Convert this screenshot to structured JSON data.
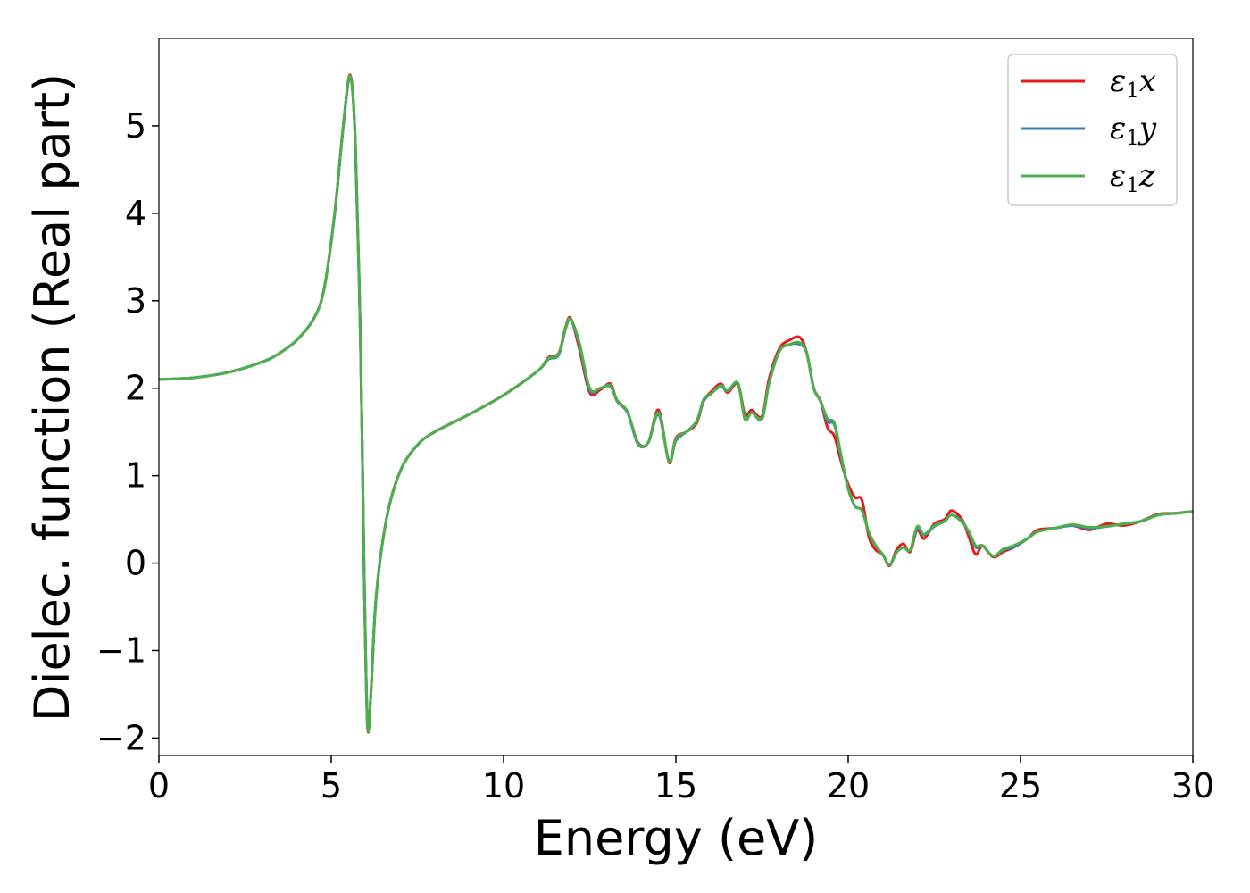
{
  "chart_data": {
    "type": "line",
    "title": "",
    "xlabel": "Energy (eV)",
    "ylabel": "Dielec. function (Real part)",
    "xlim": [
      0,
      30
    ],
    "ylim": [
      -2.2,
      6.0
    ],
    "xticks": [
      0,
      5,
      10,
      15,
      20,
      25,
      30
    ],
    "xtick_labels": [
      "0",
      "5",
      "10",
      "15",
      "20",
      "25",
      "30"
    ],
    "yticks": [
      -2,
      -1,
      0,
      1,
      2,
      3,
      4,
      5
    ],
    "ytick_labels": [
      "−2",
      "−1",
      "0",
      "1",
      "2",
      "3",
      "4",
      "5"
    ],
    "grid": false,
    "legend_position": "top-right",
    "series": [
      {
        "name": "ε₁x",
        "sym": "ε",
        "sub": "1",
        "comp": "x",
        "color": "#e41a1c",
        "points": [
          [
            0,
            2.1
          ],
          [
            1,
            2.12
          ],
          [
            2,
            2.18
          ],
          [
            3,
            2.3
          ],
          [
            3.5,
            2.4
          ],
          [
            4,
            2.55
          ],
          [
            4.5,
            2.8
          ],
          [
            4.8,
            3.15
          ],
          [
            5.1,
            4.0
          ],
          [
            5.35,
            5.0
          ],
          [
            5.55,
            5.58
          ],
          [
            5.7,
            4.8
          ],
          [
            5.85,
            2.5
          ],
          [
            5.95,
            0.0
          ],
          [
            6.05,
            -1.85
          ],
          [
            6.15,
            -1.5
          ],
          [
            6.3,
            -0.4
          ],
          [
            6.6,
            0.5
          ],
          [
            7,
            1.05
          ],
          [
            7.5,
            1.35
          ],
          [
            8,
            1.5
          ],
          [
            9,
            1.7
          ],
          [
            10,
            1.92
          ],
          [
            11,
            2.2
          ],
          [
            11.3,
            2.35
          ],
          [
            11.6,
            2.4
          ],
          [
            11.8,
            2.7
          ],
          [
            11.95,
            2.8
          ],
          [
            12.2,
            2.45
          ],
          [
            12.5,
            1.95
          ],
          [
            12.8,
            1.98
          ],
          [
            13.1,
            2.05
          ],
          [
            13.3,
            1.85
          ],
          [
            13.6,
            1.72
          ],
          [
            13.9,
            1.38
          ],
          [
            14.2,
            1.38
          ],
          [
            14.5,
            1.75
          ],
          [
            14.8,
            1.15
          ],
          [
            15,
            1.43
          ],
          [
            15.3,
            1.5
          ],
          [
            15.6,
            1.6
          ],
          [
            15.8,
            1.85
          ],
          [
            16,
            1.95
          ],
          [
            16.3,
            2.05
          ],
          [
            16.5,
            1.95
          ],
          [
            16.8,
            2.05
          ],
          [
            17,
            1.7
          ],
          [
            17.2,
            1.75
          ],
          [
            17.5,
            1.68
          ],
          [
            17.7,
            2.1
          ],
          [
            18,
            2.45
          ],
          [
            18.3,
            2.55
          ],
          [
            18.6,
            2.58
          ],
          [
            18.8,
            2.4
          ],
          [
            19,
            2.0
          ],
          [
            19.2,
            1.85
          ],
          [
            19.4,
            1.55
          ],
          [
            19.6,
            1.45
          ],
          [
            19.8,
            1.15
          ],
          [
            20,
            0.9
          ],
          [
            20.2,
            0.75
          ],
          [
            20.4,
            0.72
          ],
          [
            20.6,
            0.3
          ],
          [
            20.8,
            0.15
          ],
          [
            21.0,
            0.1
          ],
          [
            21.2,
            -0.03
          ],
          [
            21.4,
            0.15
          ],
          [
            21.6,
            0.22
          ],
          [
            21.8,
            0.13
          ],
          [
            22.0,
            0.38
          ],
          [
            22.2,
            0.28
          ],
          [
            22.5,
            0.45
          ],
          [
            22.8,
            0.5
          ],
          [
            23.0,
            0.6
          ],
          [
            23.3,
            0.5
          ],
          [
            23.5,
            0.3
          ],
          [
            23.7,
            0.1
          ],
          [
            23.9,
            0.2
          ],
          [
            24.2,
            0.07
          ],
          [
            24.5,
            0.13
          ],
          [
            24.8,
            0.18
          ],
          [
            25.2,
            0.28
          ],
          [
            25.5,
            0.38
          ],
          [
            26,
            0.4
          ],
          [
            26.5,
            0.43
          ],
          [
            27,
            0.38
          ],
          [
            27.5,
            0.45
          ],
          [
            28,
            0.43
          ],
          [
            28.5,
            0.48
          ],
          [
            29,
            0.56
          ],
          [
            29.5,
            0.57
          ],
          [
            30,
            0.59
          ]
        ]
      },
      {
        "name": "ε₁y",
        "sym": "ε",
        "sub": "1",
        "comp": "y",
        "color": "#377eb8",
        "points": [
          [
            0,
            2.1
          ],
          [
            1,
            2.12
          ],
          [
            2,
            2.18
          ],
          [
            3,
            2.3
          ],
          [
            3.5,
            2.4
          ],
          [
            4,
            2.55
          ],
          [
            4.5,
            2.8
          ],
          [
            4.8,
            3.15
          ],
          [
            5.1,
            4.0
          ],
          [
            5.35,
            5.0
          ],
          [
            5.55,
            5.56
          ],
          [
            5.7,
            4.8
          ],
          [
            5.85,
            2.5
          ],
          [
            5.95,
            0.0
          ],
          [
            6.05,
            -1.83
          ],
          [
            6.15,
            -1.5
          ],
          [
            6.3,
            -0.4
          ],
          [
            6.6,
            0.5
          ],
          [
            7,
            1.05
          ],
          [
            7.5,
            1.35
          ],
          [
            8,
            1.5
          ],
          [
            9,
            1.7
          ],
          [
            10,
            1.92
          ],
          [
            11,
            2.2
          ],
          [
            11.3,
            2.33
          ],
          [
            11.6,
            2.38
          ],
          [
            11.8,
            2.68
          ],
          [
            11.95,
            2.78
          ],
          [
            12.2,
            2.5
          ],
          [
            12.5,
            1.98
          ],
          [
            12.8,
            2.0
          ],
          [
            13.1,
            2.02
          ],
          [
            13.3,
            1.85
          ],
          [
            13.6,
            1.72
          ],
          [
            13.9,
            1.36
          ],
          [
            14.2,
            1.38
          ],
          [
            14.5,
            1.7
          ],
          [
            14.8,
            1.17
          ],
          [
            15,
            1.4
          ],
          [
            15.3,
            1.5
          ],
          [
            15.6,
            1.62
          ],
          [
            15.8,
            1.85
          ],
          [
            16,
            1.93
          ],
          [
            16.3,
            2.02
          ],
          [
            16.5,
            1.97
          ],
          [
            16.8,
            2.05
          ],
          [
            17,
            1.65
          ],
          [
            17.2,
            1.72
          ],
          [
            17.5,
            1.65
          ],
          [
            17.7,
            2.05
          ],
          [
            18,
            2.42
          ],
          [
            18.3,
            2.5
          ],
          [
            18.6,
            2.5
          ],
          [
            18.8,
            2.4
          ],
          [
            19,
            2.0
          ],
          [
            19.2,
            1.85
          ],
          [
            19.4,
            1.62
          ],
          [
            19.6,
            1.58
          ],
          [
            19.8,
            1.2
          ],
          [
            20,
            0.85
          ],
          [
            20.2,
            0.65
          ],
          [
            20.4,
            0.6
          ],
          [
            20.6,
            0.35
          ],
          [
            20.8,
            0.2
          ],
          [
            21.0,
            0.1
          ],
          [
            21.2,
            -0.02
          ],
          [
            21.4,
            0.12
          ],
          [
            21.6,
            0.18
          ],
          [
            21.8,
            0.15
          ],
          [
            22.0,
            0.4
          ],
          [
            22.2,
            0.32
          ],
          [
            22.5,
            0.42
          ],
          [
            22.8,
            0.48
          ],
          [
            23.0,
            0.55
          ],
          [
            23.3,
            0.48
          ],
          [
            23.5,
            0.35
          ],
          [
            23.7,
            0.18
          ],
          [
            23.9,
            0.2
          ],
          [
            24.2,
            0.08
          ],
          [
            24.5,
            0.15
          ],
          [
            24.8,
            0.18
          ],
          [
            25.2,
            0.28
          ],
          [
            25.5,
            0.36
          ],
          [
            26,
            0.4
          ],
          [
            26.5,
            0.43
          ],
          [
            27,
            0.4
          ],
          [
            27.5,
            0.42
          ],
          [
            28,
            0.45
          ],
          [
            28.5,
            0.48
          ],
          [
            29,
            0.55
          ],
          [
            29.5,
            0.57
          ],
          [
            30,
            0.59
          ]
        ]
      },
      {
        "name": "ε₁z",
        "sym": "ε",
        "sub": "1",
        "comp": "z",
        "color": "#4daf4a",
        "points": [
          [
            0,
            2.1
          ],
          [
            1,
            2.12
          ],
          [
            2,
            2.18
          ],
          [
            3,
            2.3
          ],
          [
            3.5,
            2.4
          ],
          [
            4,
            2.55
          ],
          [
            4.5,
            2.8
          ],
          [
            4.8,
            3.15
          ],
          [
            5.1,
            4.0
          ],
          [
            5.35,
            5.0
          ],
          [
            5.55,
            5.57
          ],
          [
            5.7,
            4.8
          ],
          [
            5.85,
            2.5
          ],
          [
            5.95,
            0.0
          ],
          [
            6.05,
            -1.84
          ],
          [
            6.15,
            -1.5
          ],
          [
            6.3,
            -0.4
          ],
          [
            6.6,
            0.5
          ],
          [
            7,
            1.05
          ],
          [
            7.5,
            1.35
          ],
          [
            8,
            1.5
          ],
          [
            9,
            1.7
          ],
          [
            10,
            1.92
          ],
          [
            11,
            2.2
          ],
          [
            11.3,
            2.34
          ],
          [
            11.6,
            2.39
          ],
          [
            11.8,
            2.69
          ],
          [
            11.95,
            2.79
          ],
          [
            12.2,
            2.52
          ],
          [
            12.5,
            2.0
          ],
          [
            12.8,
            2.0
          ],
          [
            13.1,
            2.03
          ],
          [
            13.3,
            1.86
          ],
          [
            13.6,
            1.73
          ],
          [
            13.9,
            1.37
          ],
          [
            14.2,
            1.38
          ],
          [
            14.5,
            1.72
          ],
          [
            14.8,
            1.16
          ],
          [
            15,
            1.42
          ],
          [
            15.3,
            1.5
          ],
          [
            15.6,
            1.62
          ],
          [
            15.8,
            1.87
          ],
          [
            16,
            1.93
          ],
          [
            16.3,
            2.03
          ],
          [
            16.5,
            1.97
          ],
          [
            16.8,
            2.06
          ],
          [
            17,
            1.65
          ],
          [
            17.2,
            1.72
          ],
          [
            17.5,
            1.66
          ],
          [
            17.7,
            2.05
          ],
          [
            18,
            2.42
          ],
          [
            18.3,
            2.5
          ],
          [
            18.6,
            2.52
          ],
          [
            18.8,
            2.4
          ],
          [
            19,
            2.0
          ],
          [
            19.2,
            1.85
          ],
          [
            19.4,
            1.65
          ],
          [
            19.6,
            1.6
          ],
          [
            19.8,
            1.22
          ],
          [
            20,
            0.85
          ],
          [
            20.2,
            0.65
          ],
          [
            20.4,
            0.6
          ],
          [
            20.6,
            0.35
          ],
          [
            20.8,
            0.2
          ],
          [
            21.0,
            0.1
          ],
          [
            21.2,
            -0.02
          ],
          [
            21.4,
            0.12
          ],
          [
            21.6,
            0.18
          ],
          [
            21.8,
            0.15
          ],
          [
            22.0,
            0.42
          ],
          [
            22.2,
            0.33
          ],
          [
            22.5,
            0.43
          ],
          [
            22.8,
            0.48
          ],
          [
            23.0,
            0.55
          ],
          [
            23.3,
            0.47
          ],
          [
            23.5,
            0.36
          ],
          [
            23.7,
            0.2
          ],
          [
            23.9,
            0.2
          ],
          [
            24.2,
            0.08
          ],
          [
            24.5,
            0.16
          ],
          [
            24.8,
            0.2
          ],
          [
            25.2,
            0.28
          ],
          [
            25.5,
            0.36
          ],
          [
            26,
            0.4
          ],
          [
            26.5,
            0.44
          ],
          [
            27,
            0.41
          ],
          [
            27.5,
            0.42
          ],
          [
            28,
            0.45
          ],
          [
            28.5,
            0.48
          ],
          [
            29,
            0.55
          ],
          [
            29.5,
            0.57
          ],
          [
            30,
            0.59
          ]
        ]
      }
    ]
  }
}
